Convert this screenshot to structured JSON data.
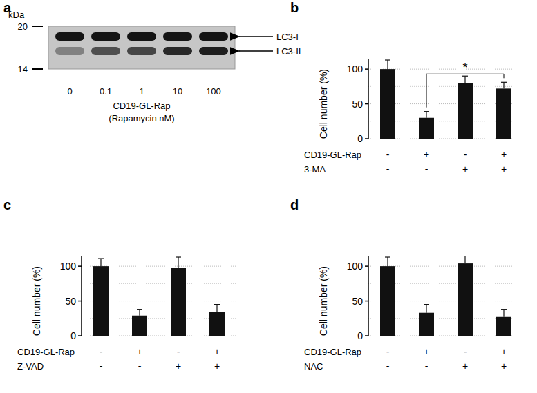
{
  "blot": {
    "title": "a",
    "unit": "kDa",
    "markers": [
      20,
      14
    ],
    "bands": [
      "LC3-I",
      "LC3-II"
    ],
    "lanes": [
      {
        "label": "0",
        "lc3_i": 0.9,
        "lc3_ii": 0.35
      },
      {
        "label": "0.1",
        "lc3_i": 0.9,
        "lc3_ii": 0.6
      },
      {
        "label": "1",
        "lc3_i": 0.9,
        "lc3_ii": 0.65
      },
      {
        "label": "10",
        "lc3_i": 0.9,
        "lc3_ii": 0.8
      },
      {
        "label": "100",
        "lc3_i": 0.9,
        "lc3_ii": 0.85
      }
    ],
    "xlabel": "CD19-GL-Rap",
    "xlabel2": "(Rapamycin nM)"
  },
  "chart_data": [
    {
      "type": "bar",
      "title": "b",
      "y_label": "Cell number (%)",
      "values": [
        100,
        30,
        80,
        72
      ],
      "errors": [
        13,
        9,
        10,
        9
      ],
      "color": "#111111",
      "ylim": [
        0,
        115
      ],
      "yticks": [
        0,
        50,
        100
      ],
      "grid": true,
      "conditions": [
        {
          "label": "CD19-GL-Rap",
          "signs": [
            "-",
            "+",
            "-",
            "+"
          ]
        },
        {
          "label": "3-MA",
          "signs": [
            "-",
            "-",
            "+",
            "+"
          ]
        }
      ],
      "annotations": [
        {
          "text": "*",
          "from": 1,
          "to": 3
        }
      ]
    },
    {
      "type": "bar",
      "title": "c",
      "y_label": "Cell number (%)",
      "values": [
        100,
        29,
        98,
        34
      ],
      "errors": [
        11,
        9,
        15,
        11
      ],
      "color": "#111111",
      "ylim": [
        0,
        115
      ],
      "yticks": [
        0,
        50,
        100
      ],
      "grid": true,
      "conditions": [
        {
          "label": "CD19-GL-Rap",
          "signs": [
            "-",
            "+",
            "-",
            "+"
          ]
        },
        {
          "label": "Z-VAD",
          "signs": [
            "-",
            "-",
            "+",
            "+"
          ]
        }
      ]
    },
    {
      "type": "bar",
      "title": "d",
      "y_label": "Cell number (%)",
      "values": [
        100,
        33,
        104,
        27
      ],
      "errors": [
        13,
        12,
        15,
        11
      ],
      "color": "#111111",
      "ylim": [
        0,
        115
      ],
      "yticks": [
        0,
        50,
        100
      ],
      "grid": true,
      "conditions": [
        {
          "label": "CD19-GL-Rap",
          "signs": [
            "-",
            "+",
            "-",
            "+"
          ]
        },
        {
          "label": "NAC",
          "signs": [
            "-",
            "-",
            "+",
            "+"
          ]
        }
      ]
    }
  ]
}
